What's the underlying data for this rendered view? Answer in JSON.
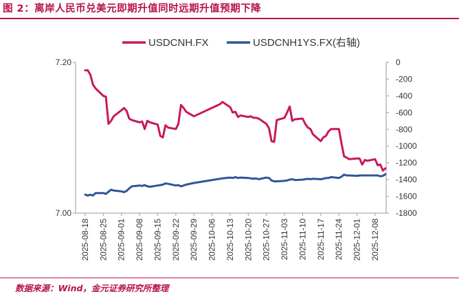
{
  "header": {
    "title": "图 2：离岸人民币兑美元即期升值同时远期升值预期下降"
  },
  "footer": {
    "source": "数据来源：Wind，金元证券研究所整理"
  },
  "chart_data": {
    "type": "line",
    "title": "图 2：离岸人民币兑美元即期升值同时远期升值预期下降",
    "legend_position": "top",
    "grid": false,
    "x_tick_labels": [
      "2025-08-18",
      "2025-08-25",
      "2025-09-01",
      "2025-09-08",
      "2025-09-15",
      "2025-09-22",
      "2025-09-29",
      "2025-10-06",
      "2025-10-13",
      "2025-10-20",
      "2025-10-27",
      "2025-11-03",
      "2025-11-10",
      "2025-11-17",
      "2025-11-24",
      "2025-12-01",
      "2025-12-08"
    ],
    "left_axis": {
      "ylim": [
        7.0,
        7.2
      ],
      "ticks": [
        "7.20",
        "7.00"
      ]
    },
    "right_axis": {
      "ylim": [
        -1800,
        0
      ],
      "ticks": [
        "0",
        "-200",
        "-400",
        "-600",
        "-800",
        "-1000",
        "-1200",
        "-1400",
        "-1600",
        "-1800"
      ]
    },
    "series": [
      {
        "name": "USDCNH.FX",
        "axis": "left",
        "color": "#c8175d",
        "x": [
          "2025-08-18",
          "2025-08-19",
          "2025-08-20",
          "2025-08-21",
          "2025-08-22",
          "2025-08-25",
          "2025-08-26",
          "2025-08-27",
          "2025-08-28",
          "2025-08-29",
          "2025-09-01",
          "2025-09-02",
          "2025-09-03",
          "2025-09-04",
          "2025-09-05",
          "2025-09-08",
          "2025-09-09",
          "2025-09-10",
          "2025-09-11",
          "2025-09-12",
          "2025-09-15",
          "2025-09-16",
          "2025-09-17",
          "2025-09-18",
          "2025-09-19",
          "2025-09-22",
          "2025-09-23",
          "2025-09-24",
          "2025-09-25",
          "2025-09-26",
          "2025-09-29",
          "2025-10-09",
          "2025-10-10",
          "2025-10-13",
          "2025-10-14",
          "2025-10-15",
          "2025-10-16",
          "2025-10-17",
          "2025-10-20",
          "2025-10-21",
          "2025-10-22",
          "2025-10-23",
          "2025-10-24",
          "2025-10-27",
          "2025-10-28",
          "2025-10-29",
          "2025-10-30",
          "2025-10-31",
          "2025-11-03",
          "2025-11-04",
          "2025-11-05",
          "2025-11-06",
          "2025-11-07",
          "2025-11-10",
          "2025-11-11",
          "2025-11-12",
          "2025-11-13",
          "2025-11-14",
          "2025-11-17",
          "2025-11-18",
          "2025-11-19",
          "2025-11-20",
          "2025-11-21",
          "2025-11-24",
          "2025-11-25",
          "2025-11-26",
          "2025-11-27",
          "2025-11-28",
          "2025-12-01",
          "2025-12-02",
          "2025-12-03",
          "2025-12-04",
          "2025-12-05",
          "2025-12-08",
          "2025-12-09",
          "2025-12-10",
          "2025-12-11",
          "2025-12-12"
        ],
        "values": [
          7.1895,
          7.1895,
          7.1835,
          7.1705,
          7.1655,
          7.1555,
          7.1545,
          7.1185,
          7.1225,
          7.1285,
          7.1365,
          7.1395,
          7.1355,
          7.1255,
          7.1235,
          7.1205,
          7.1215,
          7.1115,
          7.1225,
          7.1205,
          7.1175,
          7.1025,
          7.1005,
          7.1165,
          7.1135,
          7.1115,
          7.1185,
          7.1435,
          7.1395,
          7.1345,
          7.1285,
          7.1445,
          7.1475,
          7.1405,
          7.1335,
          7.1345,
          7.1275,
          7.1295,
          7.1275,
          7.1285,
          7.1265,
          7.1265,
          7.1255,
          7.1185,
          7.1125,
          7.0955,
          7.0945,
          7.1235,
          7.1265,
          7.1335,
          7.1415,
          7.1225,
          7.1245,
          7.1255,
          7.1185,
          7.1135,
          7.1115,
          7.1045,
          7.0955,
          7.1005,
          7.1025,
          7.1085,
          7.1115,
          7.1115,
          7.0925,
          7.0755,
          7.0735,
          7.0715,
          7.0725,
          7.0725,
          7.0645,
          7.0705,
          7.0695,
          7.0715,
          7.0635,
          7.0645,
          7.0565,
          7.0595
        ]
      },
      {
        "name": "USDCNH1YS.FX(右轴)",
        "axis": "right",
        "color": "#2f5597",
        "x": [
          "2025-08-18",
          "2025-08-19",
          "2025-08-20",
          "2025-08-21",
          "2025-08-22",
          "2025-08-25",
          "2025-08-26",
          "2025-08-27",
          "2025-08-28",
          "2025-08-29",
          "2025-09-01",
          "2025-09-02",
          "2025-09-03",
          "2025-09-04",
          "2025-09-05",
          "2025-09-08",
          "2025-09-09",
          "2025-09-10",
          "2025-09-11",
          "2025-09-12",
          "2025-09-15",
          "2025-09-16",
          "2025-09-17",
          "2025-09-18",
          "2025-09-19",
          "2025-09-22",
          "2025-09-23",
          "2025-09-24",
          "2025-09-25",
          "2025-09-26",
          "2025-09-29",
          "2025-10-09",
          "2025-10-10",
          "2025-10-13",
          "2025-10-14",
          "2025-10-15",
          "2025-10-16",
          "2025-10-17",
          "2025-10-20",
          "2025-10-21",
          "2025-10-22",
          "2025-10-23",
          "2025-10-24",
          "2025-10-27",
          "2025-10-28",
          "2025-10-29",
          "2025-10-30",
          "2025-10-31",
          "2025-11-03",
          "2025-11-04",
          "2025-11-05",
          "2025-11-06",
          "2025-11-07",
          "2025-11-10",
          "2025-11-11",
          "2025-11-12",
          "2025-11-13",
          "2025-11-14",
          "2025-11-17",
          "2025-11-18",
          "2025-11-19",
          "2025-11-20",
          "2025-11-21",
          "2025-11-24",
          "2025-11-25",
          "2025-11-26",
          "2025-11-27",
          "2025-11-28",
          "2025-12-01",
          "2025-12-02",
          "2025-12-03",
          "2025-12-04",
          "2025-12-05",
          "2025-12-08",
          "2025-12-09",
          "2025-12-10",
          "2025-12-11",
          "2025-12-12"
        ],
        "values": [
          -1580,
          -1590,
          -1580,
          -1590,
          -1560,
          -1560,
          -1570,
          -1545,
          -1520,
          -1530,
          -1540,
          -1550,
          -1535,
          -1505,
          -1480,
          -1470,
          -1475,
          -1465,
          -1480,
          -1485,
          -1470,
          -1465,
          -1460,
          -1445,
          -1450,
          -1470,
          -1465,
          -1480,
          -1470,
          -1460,
          -1440,
          -1390,
          -1385,
          -1375,
          -1380,
          -1370,
          -1380,
          -1375,
          -1380,
          -1385,
          -1390,
          -1385,
          -1395,
          -1375,
          -1380,
          -1410,
          -1420,
          -1420,
          -1415,
          -1410,
          -1400,
          -1395,
          -1405,
          -1400,
          -1395,
          -1390,
          -1395,
          -1390,
          -1395,
          -1390,
          -1380,
          -1380,
          -1370,
          -1380,
          -1365,
          -1340,
          -1350,
          -1350,
          -1355,
          -1350,
          -1350,
          -1350,
          -1350,
          -1350,
          -1350,
          -1360,
          -1355,
          -1335
        ]
      }
    ]
  }
}
